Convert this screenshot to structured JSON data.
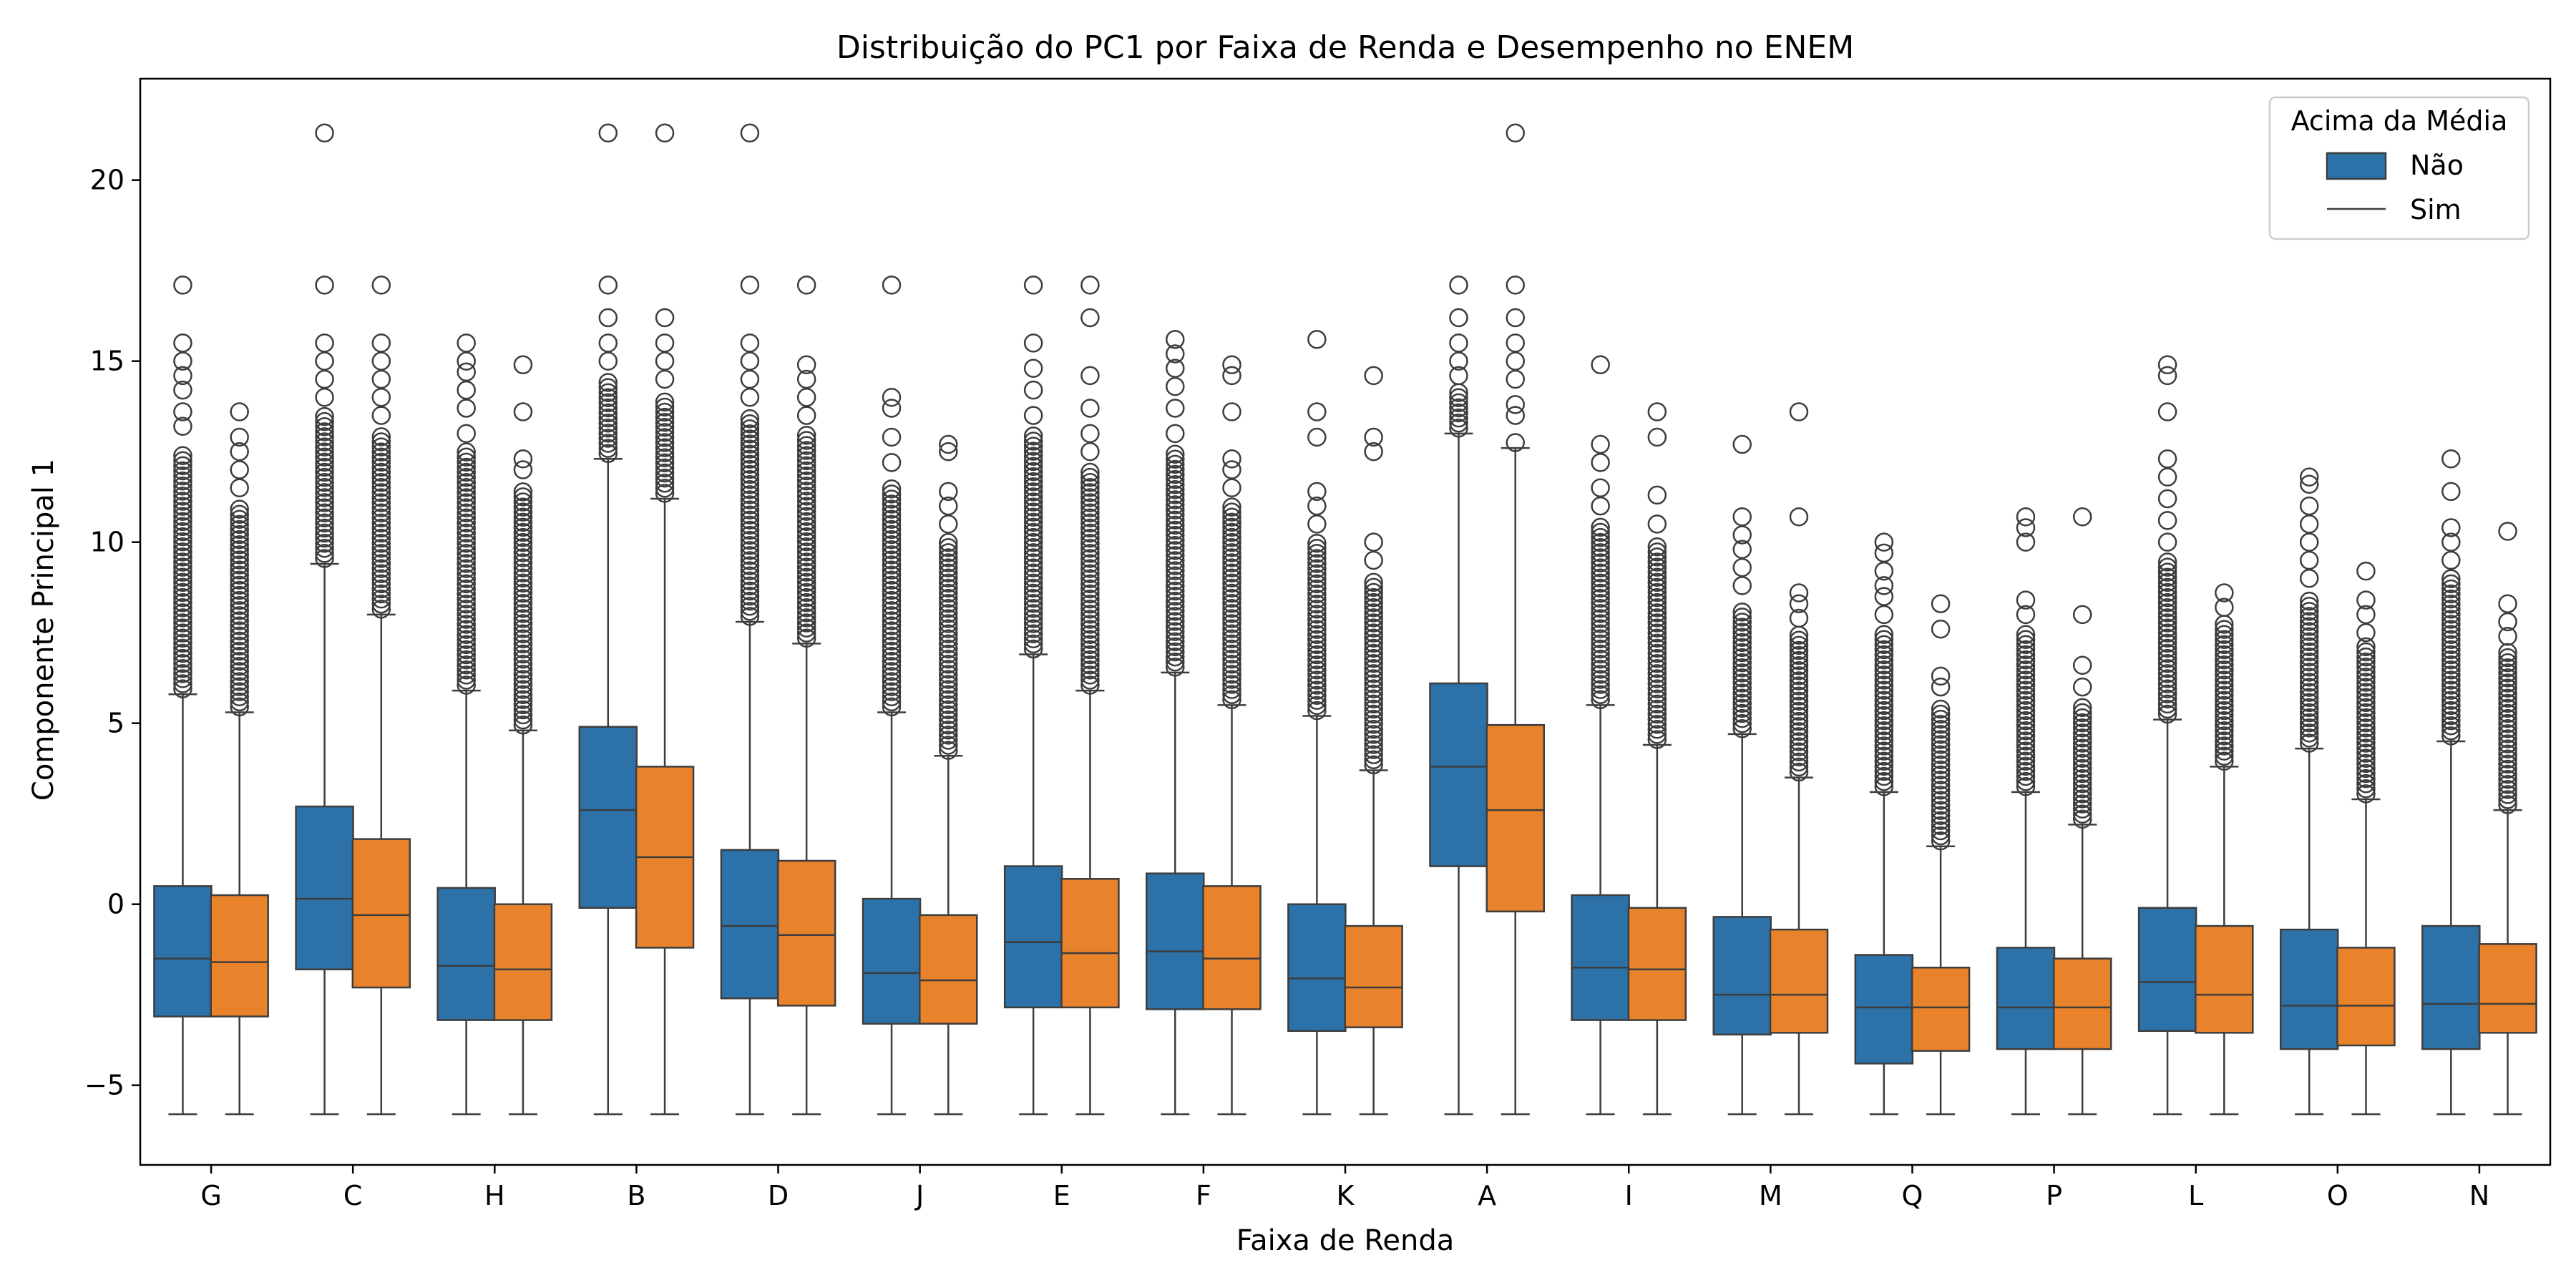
{
  "chart_data": {
    "type": "box",
    "title": "Distribuição do PC1 por Faixa de Renda e Desempenho no ENEM",
    "xlabel": "Faixa de Renda",
    "ylabel": "Componente Principal 1",
    "ylim": [
      -7.2,
      22.8
    ],
    "y_ticks": [
      -5,
      0,
      5,
      10,
      15,
      20
    ],
    "categories": [
      "G",
      "C",
      "H",
      "B",
      "D",
      "J",
      "E",
      "F",
      "K",
      "A",
      "I",
      "M",
      "Q",
      "P",
      "L",
      "O",
      "N"
    ],
    "legend": {
      "title": "Acima da Média",
      "position": "top-right",
      "entries": [
        "Não",
        "Sim"
      ]
    },
    "colors": {
      "nao": "#2c72a8",
      "sim": "#e8822b",
      "edge": "#3d3d3d"
    },
    "series": [
      {
        "name": "Não",
        "boxes": [
          {
            "whislo": -5.8,
            "q1": -3.1,
            "med": -1.5,
            "q3": 0.5,
            "whishi": 5.8,
            "dense_to": 12.5,
            "fliers": [
              13.2,
              13.6,
              14.2,
              14.6,
              15.0,
              15.5,
              17.1
            ]
          },
          {
            "whislo": -5.8,
            "q1": -1.8,
            "med": 0.15,
            "q3": 2.7,
            "whishi": 9.4,
            "dense_to": 13.5,
            "fliers": [
              14.0,
              14.5,
              15.0,
              15.5,
              17.1,
              21.3
            ]
          },
          {
            "whislo": -5.8,
            "q1": -3.2,
            "med": -1.7,
            "q3": 0.45,
            "whishi": 5.9,
            "dense_to": 12.5,
            "fliers": [
              13.0,
              13.7,
              14.2,
              14.7,
              15.0,
              15.5
            ]
          },
          {
            "whislo": -5.8,
            "q1": -0.1,
            "med": 2.6,
            "q3": 4.9,
            "whishi": 12.3,
            "dense_to": 14.5,
            "fliers": [
              15.0,
              15.5,
              16.2,
              17.1,
              21.3
            ]
          },
          {
            "whislo": -5.8,
            "q1": -2.6,
            "med": -0.6,
            "q3": 1.5,
            "whishi": 7.8,
            "dense_to": 13.5,
            "fliers": [
              14.0,
              14.5,
              15.0,
              15.5,
              17.1,
              21.3
            ]
          },
          {
            "whislo": -5.8,
            "q1": -3.3,
            "med": -1.9,
            "q3": 0.15,
            "whishi": 5.3,
            "dense_to": 11.5,
            "fliers": [
              12.2,
              12.9,
              13.7,
              14.0,
              17.1
            ]
          },
          {
            "whislo": -5.8,
            "q1": -2.85,
            "med": -1.05,
            "q3": 1.05,
            "whishi": 6.9,
            "dense_to": 13.0,
            "fliers": [
              13.5,
              14.2,
              14.8,
              15.5,
              17.1
            ]
          },
          {
            "whislo": -5.8,
            "q1": -2.9,
            "med": -1.3,
            "q3": 0.85,
            "whishi": 6.4,
            "dense_to": 12.5,
            "fliers": [
              13.0,
              13.7,
              14.3,
              14.8,
              15.2,
              15.6
            ]
          },
          {
            "whislo": -5.8,
            "q1": -3.5,
            "med": -2.05,
            "q3": 0.0,
            "whishi": 5.2,
            "dense_to": 10.0,
            "fliers": [
              10.5,
              11.0,
              11.4,
              12.9,
              13.6,
              15.6
            ]
          },
          {
            "whislo": -5.8,
            "q1": 1.05,
            "med": 3.8,
            "q3": 6.1,
            "whishi": 13.0,
            "dense_to": 14.2,
            "fliers": [
              14.6,
              15.0,
              15.5,
              16.2,
              17.1
            ]
          },
          {
            "whislo": -5.8,
            "q1": -3.2,
            "med": -1.75,
            "q3": 0.25,
            "whishi": 5.5,
            "dense_to": 10.5,
            "fliers": [
              11.0,
              11.5,
              12.2,
              12.7,
              14.9
            ]
          },
          {
            "whislo": -5.8,
            "q1": -3.6,
            "med": -2.5,
            "q3": -0.35,
            "whishi": 4.7,
            "dense_to": 8.2,
            "fliers": [
              8.8,
              9.3,
              9.8,
              10.2,
              10.7,
              12.7
            ]
          },
          {
            "whislo": -5.8,
            "q1": -4.4,
            "med": -2.85,
            "q3": -1.4,
            "whishi": 3.1,
            "dense_to": 7.5,
            "fliers": [
              8.0,
              8.5,
              8.8,
              9.2,
              9.7,
              10.0
            ]
          },
          {
            "whislo": -5.8,
            "q1": -4.0,
            "med": -2.85,
            "q3": -1.2,
            "whishi": 3.1,
            "dense_to": 7.5,
            "fliers": [
              8.0,
              8.4,
              10.0,
              10.4,
              10.7
            ]
          },
          {
            "whislo": -5.8,
            "q1": -3.5,
            "med": -2.15,
            "q3": -0.1,
            "whishi": 5.1,
            "dense_to": 9.5,
            "fliers": [
              10.0,
              10.6,
              11.2,
              11.8,
              12.3,
              13.6,
              14.6,
              14.9
            ]
          },
          {
            "whislo": -5.8,
            "q1": -4.0,
            "med": -2.8,
            "q3": -0.7,
            "whishi": 4.3,
            "dense_to": 8.5,
            "fliers": [
              9.0,
              9.5,
              10.0,
              10.5,
              11.0,
              11.6,
              11.8
            ]
          },
          {
            "whislo": -5.8,
            "q1": -4.0,
            "med": -2.75,
            "q3": -0.6,
            "whishi": 4.5,
            "dense_to": 9.0,
            "fliers": [
              9.5,
              10.0,
              10.4,
              11.4,
              12.3
            ]
          }
        ]
      },
      {
        "name": "Sim",
        "boxes": [
          {
            "whislo": -5.8,
            "q1": -3.1,
            "med": -1.6,
            "q3": 0.25,
            "whishi": 5.3,
            "dense_to": 11.0,
            "fliers": [
              11.5,
              12.0,
              12.5,
              12.9,
              13.6
            ]
          },
          {
            "whislo": -5.8,
            "q1": -2.3,
            "med": -0.3,
            "q3": 1.8,
            "whishi": 8.0,
            "dense_to": 13.0,
            "fliers": [
              13.5,
              14.0,
              14.5,
              15.0,
              15.5,
              17.1
            ]
          },
          {
            "whislo": -5.8,
            "q1": -3.2,
            "med": -1.8,
            "q3": 0.0,
            "whishi": 4.8,
            "dense_to": 11.5,
            "fliers": [
              12.0,
              12.3,
              13.6,
              14.9
            ]
          },
          {
            "whislo": -5.8,
            "q1": -1.2,
            "med": 1.3,
            "q3": 3.8,
            "whishi": 11.2,
            "dense_to": 14.0,
            "fliers": [
              14.5,
              15.0,
              15.5,
              16.2,
              21.3
            ]
          },
          {
            "whislo": -5.8,
            "q1": -2.8,
            "med": -0.85,
            "q3": 1.2,
            "whishi": 7.2,
            "dense_to": 13.0,
            "fliers": [
              13.5,
              14.0,
              14.5,
              14.9,
              17.1
            ]
          },
          {
            "whislo": -5.8,
            "q1": -3.3,
            "med": -2.1,
            "q3": -0.3,
            "whishi": 4.1,
            "dense_to": 10.0,
            "fliers": [
              10.5,
              11.0,
              11.4,
              12.5,
              12.7
            ]
          },
          {
            "whislo": -5.8,
            "q1": -2.85,
            "med": -1.35,
            "q3": 0.7,
            "whishi": 5.9,
            "dense_to": 12.0,
            "fliers": [
              12.5,
              13.0,
              13.7,
              14.6,
              16.2,
              17.1
            ]
          },
          {
            "whislo": -5.8,
            "q1": -2.9,
            "med": -1.5,
            "q3": 0.5,
            "whishi": 5.5,
            "dense_to": 11.0,
            "fliers": [
              11.5,
              12.0,
              12.3,
              13.6,
              14.6,
              14.9
            ]
          },
          {
            "whislo": -5.8,
            "q1": -3.4,
            "med": -2.3,
            "q3": -0.6,
            "whishi": 3.7,
            "dense_to": 9.0,
            "fliers": [
              9.5,
              10.0,
              12.5,
              12.9,
              14.6
            ]
          },
          {
            "whislo": -5.8,
            "q1": -0.2,
            "med": 2.6,
            "q3": 4.95,
            "whishi": 12.6,
            "dense_to": 12.8,
            "fliers": [
              13.5,
              13.8,
              14.5,
              15.0,
              15.5,
              16.2,
              17.1,
              21.3
            ]
          },
          {
            "whislo": -5.8,
            "q1": -3.2,
            "med": -1.8,
            "q3": -0.1,
            "whishi": 4.4,
            "dense_to": 10.0,
            "fliers": [
              10.5,
              11.3,
              12.9,
              13.6
            ]
          },
          {
            "whislo": -5.8,
            "q1": -3.55,
            "med": -2.5,
            "q3": -0.7,
            "whishi": 3.5,
            "dense_to": 7.5,
            "fliers": [
              7.9,
              8.3,
              8.6,
              10.7,
              13.6
            ]
          },
          {
            "whislo": -5.8,
            "q1": -4.05,
            "med": -2.85,
            "q3": -1.75,
            "whishi": 1.6,
            "dense_to": 5.5,
            "fliers": [
              6.0,
              6.3,
              7.6,
              8.3
            ]
          },
          {
            "whislo": -5.8,
            "q1": -4.0,
            "med": -2.85,
            "q3": -1.5,
            "whishi": 2.2,
            "dense_to": 5.5,
            "fliers": [
              6.0,
              6.6,
              8.0,
              10.7
            ]
          },
          {
            "whislo": -5.8,
            "q1": -3.55,
            "med": -2.5,
            "q3": -0.6,
            "whishi": 3.8,
            "dense_to": 7.8,
            "fliers": [
              8.2,
              8.6
            ]
          },
          {
            "whislo": -5.8,
            "q1": -3.9,
            "med": -2.8,
            "q3": -1.2,
            "whishi": 2.9,
            "dense_to": 7.2,
            "fliers": [
              7.5,
              8.0,
              8.4,
              9.2
            ]
          },
          {
            "whislo": -5.8,
            "q1": -3.55,
            "med": -2.75,
            "q3": -1.1,
            "whishi": 2.6,
            "dense_to": 7.0,
            "fliers": [
              7.4,
              7.8,
              8.3,
              10.3
            ]
          }
        ]
      }
    ]
  }
}
